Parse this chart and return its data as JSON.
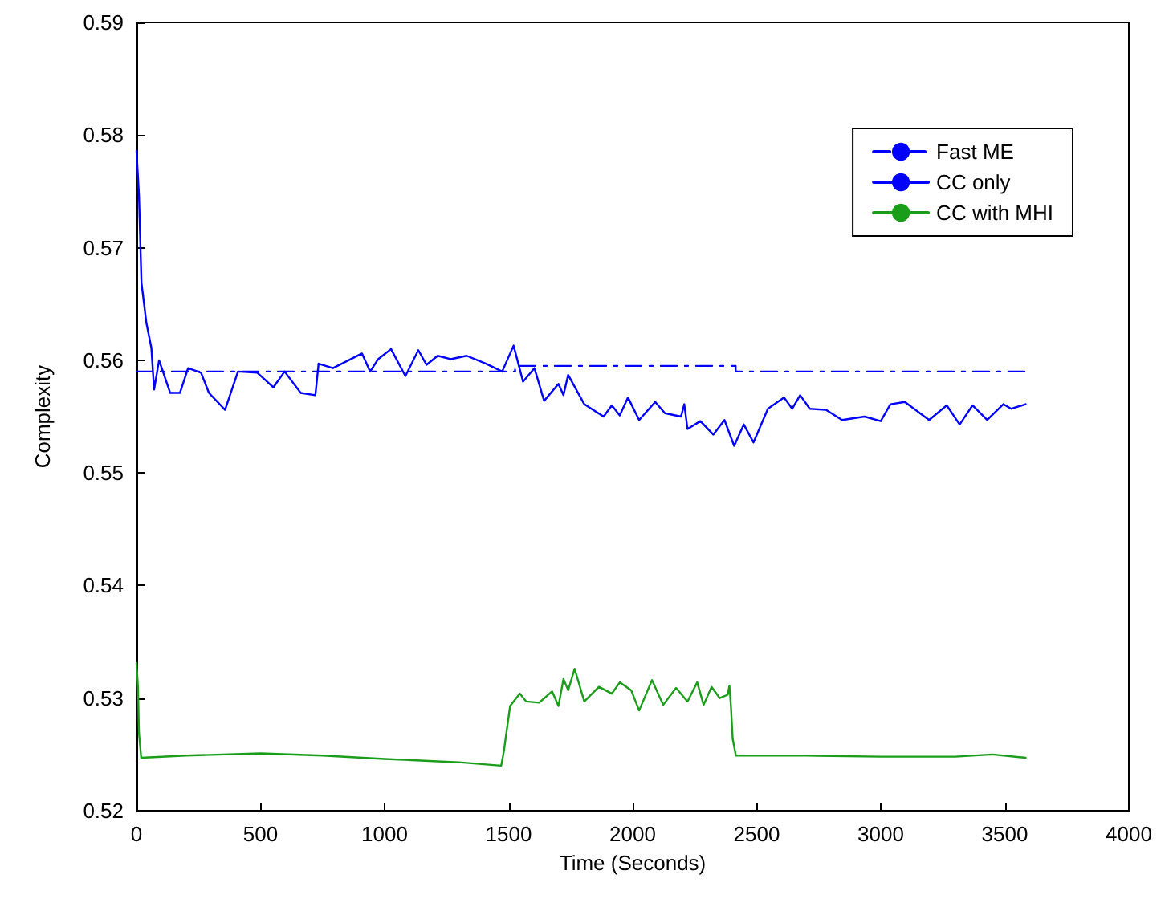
{
  "chart_data": {
    "type": "line",
    "xlabel": "Time (Seconds)",
    "ylabel": "Complexity",
    "xlim": [
      0,
      4000
    ],
    "xticks": [
      0,
      500,
      1000,
      1500,
      2000,
      2500,
      3000,
      3500,
      4000
    ],
    "ylim": [
      0.52,
      0.59
    ],
    "yticks": [
      0.52,
      0.53,
      0.54,
      0.55,
      0.56,
      0.57,
      0.58,
      0.59
    ],
    "grid": false,
    "legend": "top right",
    "series": [
      {
        "name": "Fast ME",
        "color": "#0000ff",
        "line_style": "dashed",
        "x": [
          0,
          1526,
          1526,
          2415,
          2415,
          3584
        ],
        "values": [
          0.559,
          0.559,
          0.5595,
          0.5595,
          0.559,
          0.559
        ]
      },
      {
        "name": "CC only",
        "color": "#0000ff",
        "line_style": "solid",
        "x": [
          0,
          10,
          20,
          40,
          60,
          71,
          91,
          136,
          175,
          208,
          260,
          292,
          357,
          409,
          487,
          552,
          597,
          662,
          721,
          734,
          792,
          909,
          942,
          974,
          1026,
          1084,
          1136,
          1169,
          1214,
          1266,
          1331,
          1409,
          1474,
          1520,
          1558,
          1604,
          1643,
          1701,
          1721,
          1740,
          1805,
          1883,
          1916,
          1948,
          1981,
          2026,
          2091,
          2130,
          2195,
          2208,
          2221,
          2273,
          2325,
          2370,
          2409,
          2448,
          2487,
          2545,
          2610,
          2643,
          2675,
          2714,
          2779,
          2844,
          2935,
          3000,
          3039,
          3097,
          3195,
          3266,
          3318,
          3370,
          3429,
          3494,
          3526,
          3584
        ],
        "values": [
          0.5786,
          0.5747,
          0.5669,
          0.5633,
          0.5611,
          0.5574,
          0.56,
          0.5571,
          0.5571,
          0.5593,
          0.5589,
          0.5571,
          0.5556,
          0.559,
          0.5589,
          0.5576,
          0.559,
          0.5571,
          0.5569,
          0.5597,
          0.5593,
          0.5606,
          0.559,
          0.5601,
          0.561,
          0.5586,
          0.5609,
          0.5596,
          0.5604,
          0.5601,
          0.5604,
          0.5597,
          0.559,
          0.5613,
          0.5581,
          0.5593,
          0.5564,
          0.5579,
          0.5569,
          0.5587,
          0.5561,
          0.555,
          0.556,
          0.5551,
          0.5567,
          0.5547,
          0.5563,
          0.5553,
          0.555,
          0.5561,
          0.5539,
          0.5546,
          0.5534,
          0.5547,
          0.5524,
          0.5543,
          0.5527,
          0.5557,
          0.5567,
          0.5557,
          0.5569,
          0.5557,
          0.5556,
          0.5547,
          0.555,
          0.5546,
          0.5561,
          0.5563,
          0.5547,
          0.556,
          0.5543,
          0.556,
          0.5547,
          0.5561,
          0.5557,
          0.5561
        ]
      },
      {
        "name": "CC with MHI",
        "color": "#1a9e1a",
        "line_style": "solid",
        "x": [
          0,
          6,
          10,
          19,
          200,
          500,
          750,
          1000,
          1300,
          1470,
          1481,
          1506,
          1545,
          1571,
          1623,
          1675,
          1701,
          1721,
          1740,
          1766,
          1805,
          1864,
          1916,
          1948,
          1994,
          2026,
          2078,
          2123,
          2175,
          2221,
          2260,
          2286,
          2318,
          2351,
          2383,
          2390,
          2396,
          2403,
          2416,
          2700,
          3000,
          3300,
          3450,
          3584
        ],
        "values": [
          0.5331,
          0.531,
          0.5269,
          0.5247,
          0.5249,
          0.5251,
          0.5249,
          0.5246,
          0.5243,
          0.524,
          0.5253,
          0.5293,
          0.5304,
          0.5297,
          0.5296,
          0.5306,
          0.5293,
          0.5317,
          0.5307,
          0.5326,
          0.5297,
          0.531,
          0.5304,
          0.5314,
          0.5307,
          0.5289,
          0.5316,
          0.5294,
          0.5309,
          0.5297,
          0.5314,
          0.5294,
          0.531,
          0.53,
          0.5303,
          0.5311,
          0.5293,
          0.5264,
          0.5249,
          0.5249,
          0.5248,
          0.5248,
          0.525,
          0.5247
        ]
      }
    ]
  }
}
